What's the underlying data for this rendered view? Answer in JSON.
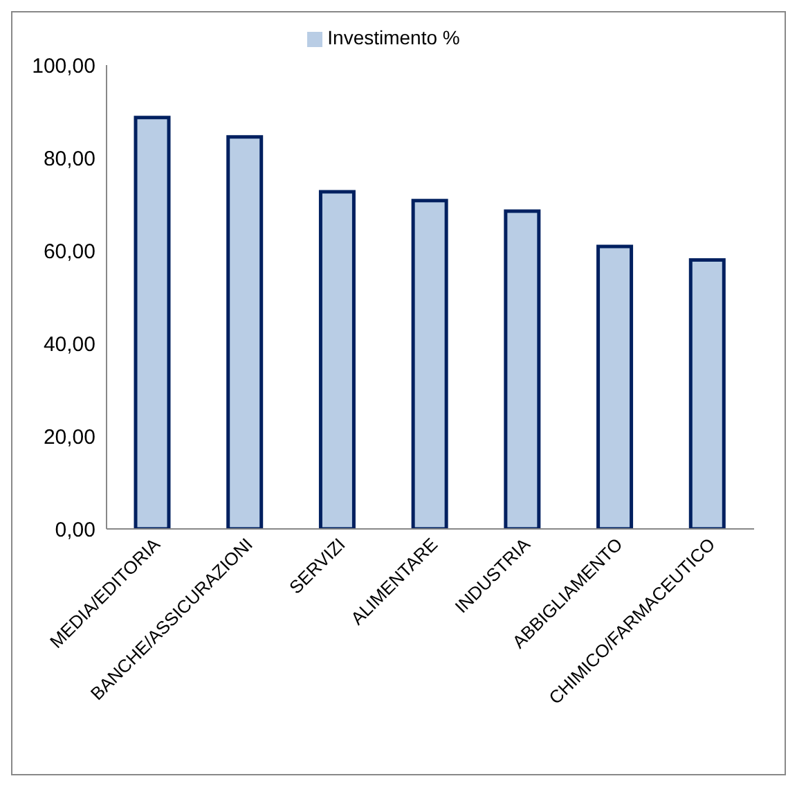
{
  "chart_data": {
    "type": "bar",
    "categories": [
      "MEDIA/EDITORIA",
      "BANCHE/ASSICURAZIONI",
      "SERVIZI",
      "ALIMENTARE",
      "INDUSTRIA",
      "ABBIGLIAMENTO",
      "CHIMICO/FARMACEUTICO"
    ],
    "series": [
      {
        "name": "Investimento %",
        "color": "#b9cde5",
        "values": [
          88.7,
          84.5,
          72.7,
          70.8,
          68.5,
          60.9,
          58.0
        ]
      }
    ],
    "ylim": [
      0,
      100
    ],
    "yticks": [
      {
        "value": 0,
        "label": "0,00"
      },
      {
        "value": 20,
        "label": "20,00"
      },
      {
        "value": 40,
        "label": "40,00"
      },
      {
        "value": 60,
        "label": "60,00"
      },
      {
        "value": 80,
        "label": "80,00"
      },
      {
        "value": 100,
        "label": "100,00"
      }
    ],
    "grid": false,
    "legend": "top"
  }
}
